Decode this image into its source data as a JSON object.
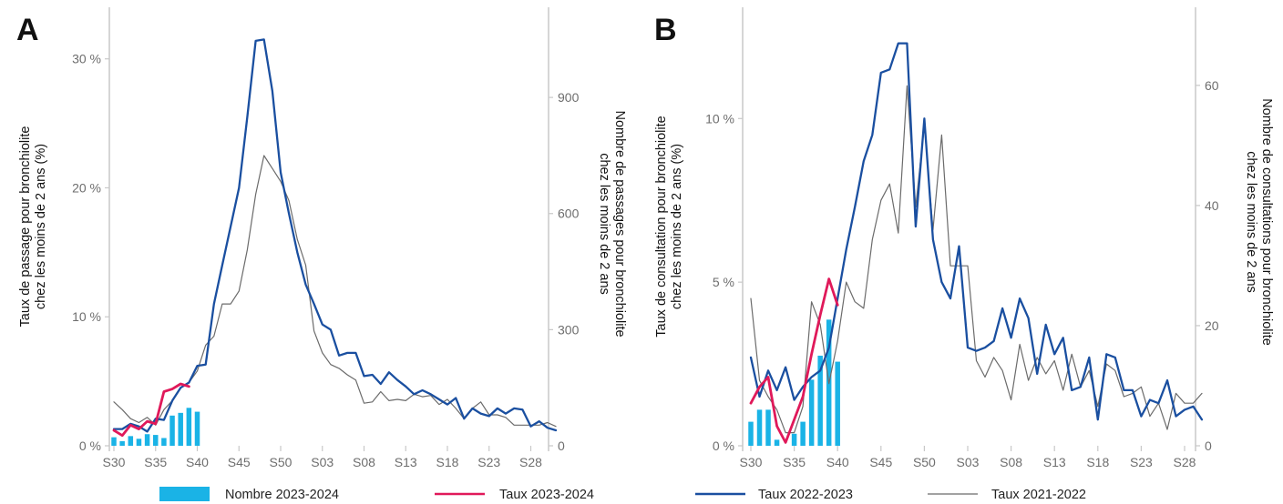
{
  "colors": {
    "bar": "#1ab3e6",
    "taux_2023_2024": "#e0195a",
    "taux_2022_2023": "#1a4fa0",
    "taux_2021_2022": "#6b6b6b",
    "axis": "#c8c8c8",
    "tick_text": "#6e6e6e"
  },
  "legend": [
    {
      "key": "bars",
      "label": "Nombre 2023-2024",
      "kind": "bar"
    },
    {
      "key": "t2324",
      "label": "Taux 2023-2024",
      "kind": "line"
    },
    {
      "key": "t2223",
      "label": "Taux 2022-2023",
      "kind": "line"
    },
    {
      "key": "t2122",
      "label": "Taux 2021-2022",
      "kind": "thin-line"
    }
  ],
  "chart_data": [
    {
      "panel": "A",
      "type": "line",
      "ylabel_left": "Taux de passage pour bronchiolite chez les moins de 2 ans (%)",
      "ylabel_right": "Nombre de passages pour bronchiolite chez les moins de 2 ans",
      "x_ticks": [
        "S30",
        "S35",
        "S40",
        "S45",
        "S50",
        "S03",
        "S08",
        "S13",
        "S18",
        "S23",
        "S28"
      ],
      "ylim_left": [
        0,
        34
      ],
      "yticks_left": [
        {
          "v": 0,
          "label": "0 %"
        },
        {
          "v": 10,
          "label": "10 %"
        },
        {
          "v": 20,
          "label": "20 %"
        },
        {
          "v": 30,
          "label": "30 %"
        }
      ],
      "ylim_right": [
        0,
        1133
      ],
      "yticks_right": [
        {
          "v": 0,
          "label": "0"
        },
        {
          "v": 300,
          "label": "300"
        },
        {
          "v": 600,
          "label": "600"
        },
        {
          "v": 900,
          "label": "900"
        }
      ],
      "bars": {
        "name": "Nombre 2023-2024",
        "x_start": 0,
        "values": [
          22,
          12,
          25,
          18,
          30,
          28,
          20,
          78,
          85,
          98,
          88
        ]
      },
      "series": [
        {
          "name": "Taux 2023-2024",
          "key": "t2324",
          "x_start": 0,
          "values": [
            1.2,
            0.8,
            1.6,
            1.3,
            1.9,
            1.7,
            4.2,
            4.4,
            4.8,
            4.6
          ]
        },
        {
          "name": "Taux 2022-2023",
          "key": "t2223",
          "x_start": 0,
          "values": [
            1.3,
            1.3,
            1.7,
            1.5,
            1.1,
            2.1,
            2.0,
            3.5,
            4.5,
            4.9,
            6.2,
            6.3,
            11.0,
            14.0,
            17.0,
            20.0,
            25.5,
            31.4,
            31.5,
            27.5,
            21.2,
            18.0,
            15.0,
            12.5,
            11.0,
            9.4,
            9.0,
            7.0,
            7.2,
            7.2,
            5.4,
            5.5,
            4.8,
            5.7,
            5.1,
            4.6,
            4.0,
            4.3,
            4.0,
            3.6,
            3.2,
            3.7,
            2.1,
            2.9,
            2.5,
            2.3,
            2.9,
            2.5,
            2.9,
            2.8,
            1.5,
            1.9,
            1.4,
            1.2
          ]
        },
        {
          "name": "Taux 2021-2022",
          "key": "t2122",
          "x_start": 0,
          "values": [
            3.4,
            2.8,
            2.1,
            1.8,
            2.2,
            1.6,
            2.8,
            3.5,
            4.5,
            4.9,
            5.8,
            7.8,
            8.5,
            11.0,
            11.0,
            12.0,
            15.2,
            19.5,
            22.5,
            21.5,
            20.5,
            19.0,
            16.0,
            14.0,
            8.9,
            7.2,
            6.3,
            6.0,
            5.5,
            5.1,
            3.3,
            3.4,
            4.2,
            3.5,
            3.6,
            3.5,
            4.0,
            3.8,
            3.9,
            3.2,
            3.6,
            2.9,
            2.1,
            2.9,
            3.4,
            2.4,
            2.4,
            2.2,
            1.6,
            1.6,
            1.6,
            1.6,
            1.8,
            1.5
          ]
        }
      ]
    },
    {
      "panel": "B",
      "type": "line",
      "ylabel_left": "Taux de consultation pour bronchiolite chez les moins de 2 ans (%)",
      "ylabel_right": "Nombre de consultations pour bronchiolite chez les moins de 2 ans",
      "x_ticks": [
        "S30",
        "S35",
        "S40",
        "S45",
        "S50",
        "S03",
        "S08",
        "S13",
        "S18",
        "S23",
        "S28"
      ],
      "ylim_left": [
        0,
        13.4
      ],
      "yticks_left": [
        {
          "v": 0,
          "label": "0 %"
        },
        {
          "v": 5,
          "label": "5 %"
        },
        {
          "v": 10,
          "label": "10 %"
        }
      ],
      "ylim_right": [
        0,
        73
      ],
      "yticks_right": [
        {
          "v": 0,
          "label": "0"
        },
        {
          "v": 20,
          "label": "20"
        },
        {
          "v": 40,
          "label": "40"
        },
        {
          "v": 60,
          "label": "60"
        }
      ],
      "bars": {
        "name": "Nombre 2023-2024",
        "x_start": 0,
        "values": [
          4,
          6,
          6,
          1,
          0,
          2,
          4,
          11,
          15,
          21,
          14
        ]
      },
      "series": [
        {
          "name": "Taux 2023-2024",
          "key": "t2324",
          "x_start": 0,
          "values": [
            1.3,
            1.8,
            2.1,
            0.6,
            0.1,
            0.8,
            1.5,
            2.8,
            4.0,
            5.1,
            4.3
          ]
        },
        {
          "name": "Taux 2022-2023",
          "key": "t2223",
          "x_start": 0,
          "values": [
            2.7,
            1.5,
            2.3,
            1.7,
            2.4,
            1.4,
            1.8,
            2.1,
            2.3,
            3.0,
            4.5,
            6.0,
            7.3,
            8.7,
            9.5,
            11.4,
            11.5,
            12.3,
            12.3,
            6.7,
            10.0,
            6.3,
            5.0,
            4.5,
            6.1,
            3.0,
            2.9,
            3.0,
            3.2,
            4.2,
            3.3,
            4.5,
            3.9,
            2.2,
            3.7,
            2.8,
            3.3,
            1.7,
            1.8,
            2.7,
            0.8,
            2.8,
            2.7,
            1.7,
            1.7,
            0.9,
            1.4,
            1.3,
            2.0,
            0.9,
            1.1,
            1.2,
            0.8
          ]
        },
        {
          "name": "Taux 2021-2022",
          "key": "t2122",
          "x_start": 0,
          "values": [
            4.5,
            2.0,
            1.5,
            1.1,
            0.4,
            0.4,
            1.2,
            4.4,
            3.7,
            1.9,
            3.2,
            5.0,
            4.4,
            4.2,
            6.3,
            7.5,
            8.0,
            6.5,
            11.0,
            7.3,
            9.8,
            6.6,
            9.5,
            5.5,
            5.5,
            5.5,
            2.6,
            2.1,
            2.7,
            2.3,
            1.4,
            3.1,
            2.0,
            2.7,
            2.2,
            2.6,
            1.7,
            2.8,
            1.8,
            2.3,
            1.2,
            2.5,
            2.3,
            1.5,
            1.6,
            1.8,
            0.9,
            1.3,
            0.5,
            1.6,
            1.3,
            1.3,
            1.6
          ]
        }
      ]
    }
  ]
}
